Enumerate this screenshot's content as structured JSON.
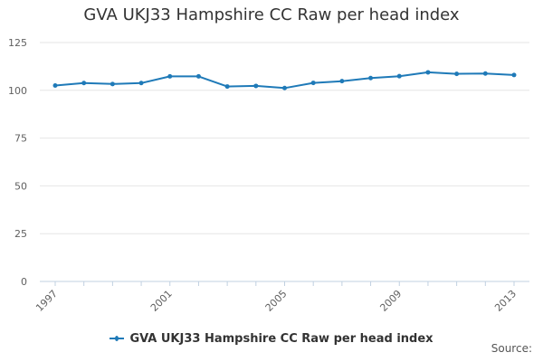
{
  "chart_data": {
    "type": "line",
    "title": "GVA UKJ33 Hampshire CC Raw per head index",
    "x": [
      1997,
      1998,
      1999,
      2000,
      2001,
      2002,
      2003,
      2004,
      2005,
      2006,
      2007,
      2008,
      2009,
      2010,
      2011,
      2012,
      2013
    ],
    "x_tick_labels": [
      "1997",
      "2001",
      "2005",
      "2009",
      "2013"
    ],
    "y_ticks": [
      0,
      25,
      50,
      75,
      100,
      125
    ],
    "ylim": [
      0,
      125
    ],
    "grid": true,
    "legend_position": "bottom",
    "series": [
      {
        "name": "GVA UKJ33 Hampshire CC Raw per head index",
        "color": "#1f7ab8",
        "values": [
          102.5,
          103.8,
          103.3,
          103.8,
          107.3,
          107.3,
          102.0,
          102.3,
          101.2,
          103.9,
          104.8,
          106.4,
          107.4,
          109.4,
          108.6,
          108.8,
          108.0
        ]
      }
    ]
  },
  "source_label": "Source:"
}
